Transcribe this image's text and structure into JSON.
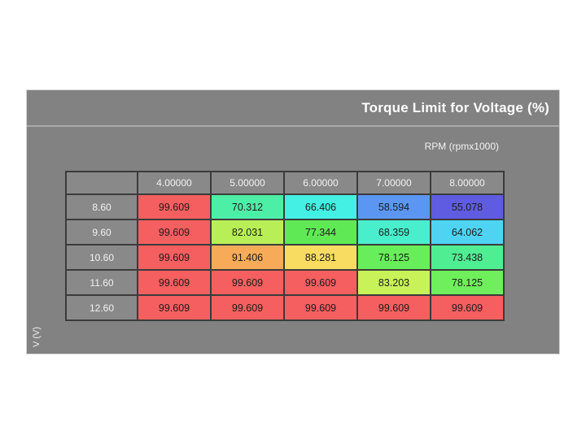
{
  "panel": {
    "title": "Torque Limit for Voltage (%)",
    "rpm_label": "RPM (rpmx1000)",
    "y_axis_label": "V (V)"
  },
  "table": {
    "column_headers": [
      "4.00000",
      "5.00000",
      "6.00000",
      "7.00000",
      "8.00000"
    ],
    "row_headers": [
      "8.60",
      "9.60",
      "10.60",
      "11.60",
      "12.60"
    ],
    "values": [
      [
        "99.609",
        "70.312",
        "66.406",
        "58.594",
        "55.078"
      ],
      [
        "99.609",
        "82.031",
        "77.344",
        "68.359",
        "64.062"
      ],
      [
        "99.609",
        "91.406",
        "88.281",
        "78.125",
        "73.438"
      ],
      [
        "99.609",
        "99.609",
        "99.609",
        "83.203",
        "78.125"
      ],
      [
        "99.609",
        "99.609",
        "99.609",
        "99.609",
        "99.609"
      ]
    ],
    "cell_colors": [
      [
        "#f55f5f",
        "#4deea6",
        "#44f0e4",
        "#5b97f2",
        "#5f5ce1"
      ],
      [
        "#f55f5f",
        "#b8ef56",
        "#5fea55",
        "#49efcc",
        "#4ed4f2"
      ],
      [
        "#f55f5f",
        "#f7ab58",
        "#f8dc62",
        "#68ee5a",
        "#4fee93"
      ],
      [
        "#f55f5f",
        "#f55f5f",
        "#f55f5f",
        "#c8f257",
        "#6eef5b"
      ],
      [
        "#f55f5f",
        "#f55f5f",
        "#f55f5f",
        "#f55f5f",
        "#f55f5f"
      ]
    ]
  },
  "colors": {
    "page_bg": "#ffffff",
    "panel_bg": "#828282",
    "header_cell_bg": "#898989",
    "grid_line": "#3b3b3b",
    "separator": "#a9a9a9",
    "header_text": "#f2f2f2",
    "cell_text": "#1c1c1c"
  },
  "chart_data": {
    "type": "heatmap",
    "title": "Torque Limit for Voltage (%)",
    "xlabel": "RPM (rpmx1000)",
    "ylabel": "V (V)",
    "x": [
      4.0,
      5.0,
      6.0,
      7.0,
      8.0
    ],
    "y": [
      8.6,
      9.6,
      10.6,
      11.6,
      12.6
    ],
    "values": [
      [
        99.609,
        70.312,
        66.406,
        58.594,
        55.078
      ],
      [
        99.609,
        82.031,
        77.344,
        68.359,
        64.062
      ],
      [
        99.609,
        91.406,
        88.281,
        78.125,
        73.438
      ],
      [
        99.609,
        99.609,
        99.609,
        83.203,
        78.125
      ],
      [
        99.609,
        99.609,
        99.609,
        99.609,
        99.609
      ]
    ],
    "value_range": [
      50,
      100
    ],
    "colormap": "jet-like (blue=low, red=high)"
  }
}
